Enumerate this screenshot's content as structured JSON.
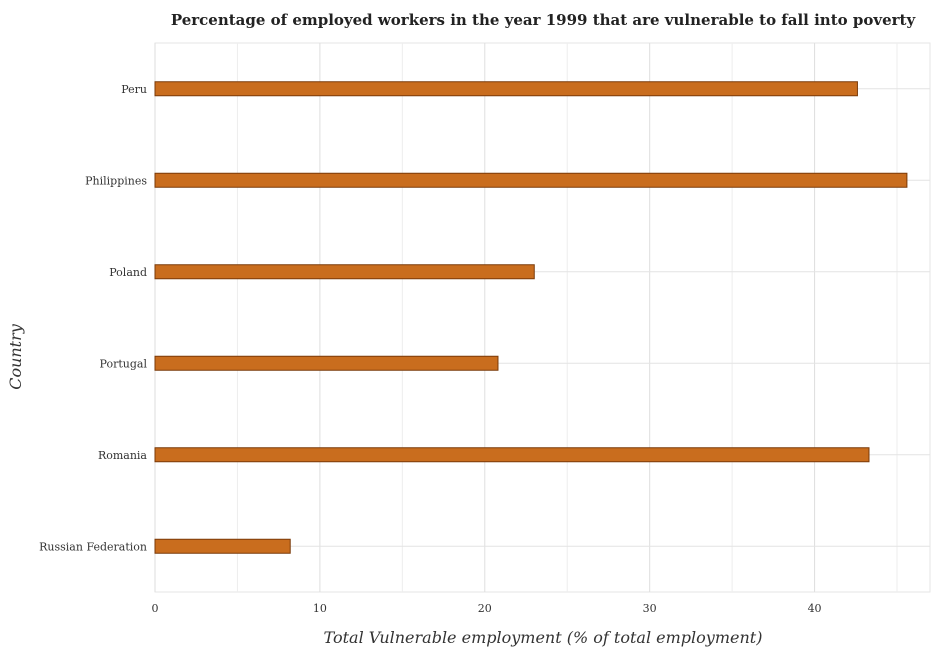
{
  "chart_data": {
    "type": "bar",
    "orientation": "horizontal",
    "title": "Percentage of employed workers in the year 1999 that are vulnerable to fall into poverty",
    "xlabel": "Total Vulnerable employment (% of total employment)",
    "ylabel": "Country",
    "categories": [
      "Peru",
      "Philippines",
      "Poland",
      "Portugal",
      "Romania",
      "Russian Federation"
    ],
    "values": [
      42.6,
      45.6,
      23.0,
      20.8,
      43.3,
      8.2
    ],
    "xlim": [
      0,
      47
    ],
    "xticks": [
      "0",
      "10",
      "20",
      "30",
      "40"
    ],
    "grid": true,
    "bar_color": "#c96d1e",
    "bar_edge_color": "#7a3a08"
  }
}
